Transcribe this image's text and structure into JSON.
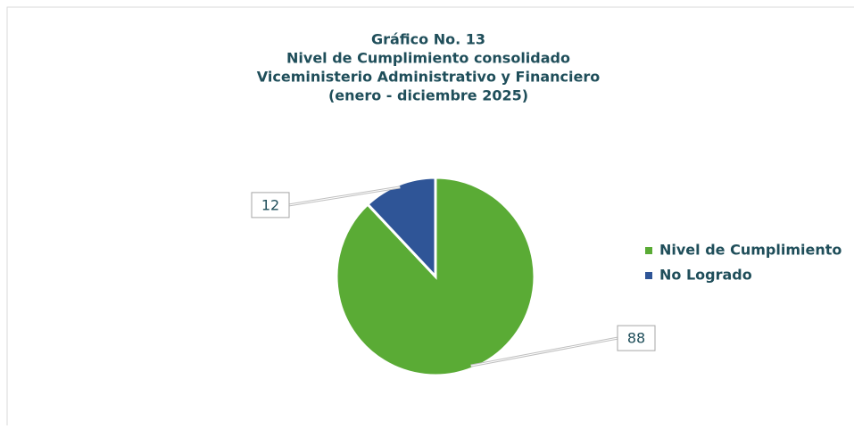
{
  "chart_data": {
    "type": "pie",
    "title": [
      "Gráfico No. 13",
      "Nivel de Cumplimiento consolidado",
      "Viceministerio Administrativo y Financiero",
      "(enero - diciembre 2025)"
    ],
    "categories": [
      "Nivel de Cumplimiento",
      "No Logrado"
    ],
    "values": [
      88,
      12
    ],
    "colors": [
      "#5aab35",
      "#2f5597"
    ],
    "legend": "right"
  }
}
